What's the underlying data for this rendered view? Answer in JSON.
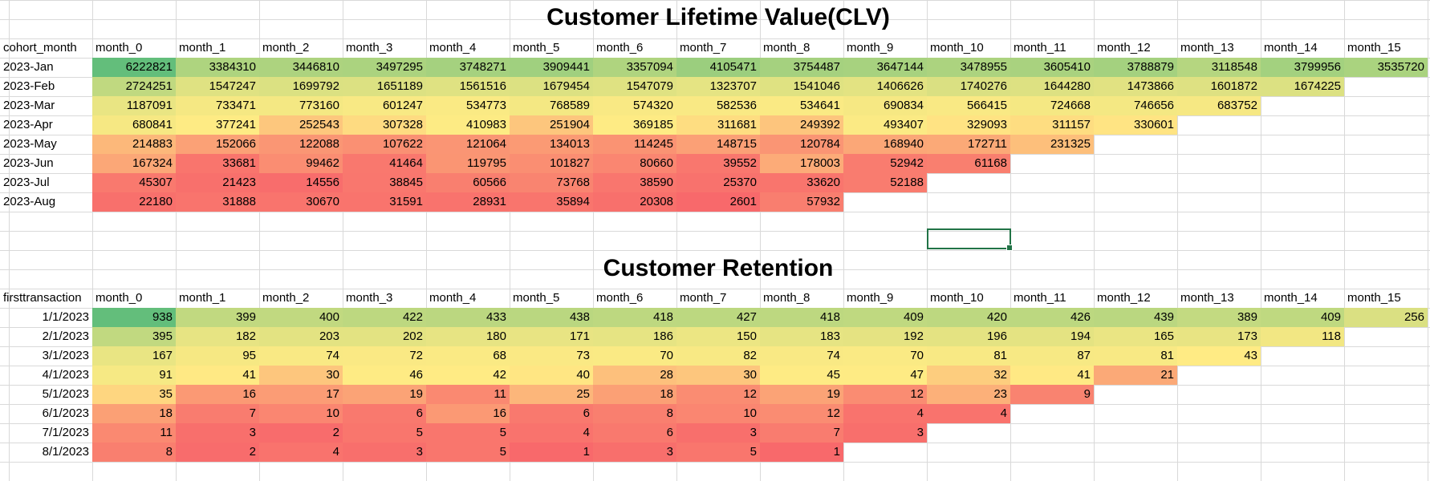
{
  "columns": [
    "month_0",
    "month_1",
    "month_2",
    "month_3",
    "month_4",
    "month_5",
    "month_6",
    "month_7",
    "month_8",
    "month_9",
    "month_10",
    "month_11",
    "month_12",
    "month_13",
    "month_14",
    "month_15"
  ],
  "clv": {
    "title": "Customer Lifetime Value(CLV)",
    "corner_label": "cohort_month",
    "rows": [
      {
        "label": "2023-Jan",
        "values": [
          6222821,
          3384310,
          3446810,
          3497295,
          3748271,
          3909441,
          3357094,
          4105471,
          3754487,
          3647144,
          3478955,
          3605410,
          3788879,
          3118548,
          3799956,
          3535720
        ]
      },
      {
        "label": "2023-Feb",
        "values": [
          2724251,
          1547247,
          1699792,
          1651189,
          1561516,
          1679454,
          1547079,
          1323707,
          1541046,
          1406626,
          1740276,
          1644280,
          1473866,
          1601872,
          1674225
        ]
      },
      {
        "label": "2023-Mar",
        "values": [
          1187091,
          733471,
          773160,
          601247,
          534773,
          768589,
          574320,
          582536,
          534641,
          690834,
          566415,
          724668,
          746656,
          683752
        ]
      },
      {
        "label": "2023-Apr",
        "values": [
          680841,
          377241,
          252543,
          307328,
          410983,
          251904,
          369185,
          311681,
          249392,
          493407,
          329093,
          311157,
          330601
        ]
      },
      {
        "label": "2023-May",
        "values": [
          214883,
          152066,
          122088,
          107622,
          121064,
          134013,
          114245,
          148715,
          120784,
          168940,
          172711,
          231325
        ]
      },
      {
        "label": "2023-Jun",
        "values": [
          167324,
          33681,
          99462,
          41464,
          119795,
          101827,
          80660,
          39552,
          178003,
          52942,
          61168
        ]
      },
      {
        "label": "2023-Jul",
        "values": [
          45307,
          21423,
          14556,
          38845,
          60566,
          73768,
          38590,
          25370,
          33620,
          52188
        ]
      },
      {
        "label": "2023-Aug",
        "values": [
          22180,
          31888,
          30670,
          31591,
          28931,
          35894,
          20308,
          2601,
          57932
        ]
      }
    ]
  },
  "retention": {
    "title": "Customer Retention",
    "corner_label": "firsttransaction",
    "rows": [
      {
        "label": "1/1/2023",
        "values": [
          938,
          399,
          400,
          422,
          433,
          438,
          418,
          427,
          418,
          409,
          420,
          426,
          439,
          389,
          409,
          256
        ]
      },
      {
        "label": "2/1/2023",
        "values": [
          395,
          182,
          203,
          202,
          180,
          171,
          186,
          150,
          183,
          192,
          196,
          194,
          165,
          173,
          118
        ]
      },
      {
        "label": "3/1/2023",
        "values": [
          167,
          95,
          74,
          72,
          68,
          73,
          70,
          82,
          74,
          70,
          81,
          87,
          81,
          43
        ]
      },
      {
        "label": "4/1/2023",
        "values": [
          91,
          41,
          30,
          46,
          42,
          40,
          28,
          30,
          45,
          47,
          32,
          41,
          21
        ]
      },
      {
        "label": "5/1/2023",
        "values": [
          35,
          16,
          17,
          19,
          11,
          25,
          18,
          12,
          19,
          12,
          23,
          9
        ]
      },
      {
        "label": "6/1/2023",
        "values": [
          18,
          7,
          10,
          6,
          16,
          6,
          8,
          10,
          12,
          4,
          4
        ]
      },
      {
        "label": "7/1/2023",
        "values": [
          11,
          3,
          2,
          5,
          5,
          4,
          6,
          3,
          7,
          3
        ]
      },
      {
        "label": "8/1/2023",
        "values": [
          8,
          2,
          4,
          3,
          5,
          1,
          3,
          5,
          1
        ]
      }
    ]
  },
  "colors": {
    "high": "#63be7b",
    "mid": "#ffeb84",
    "low": "#f8696b",
    "grid": "#d9d9d9",
    "selection": "#217346"
  }
}
